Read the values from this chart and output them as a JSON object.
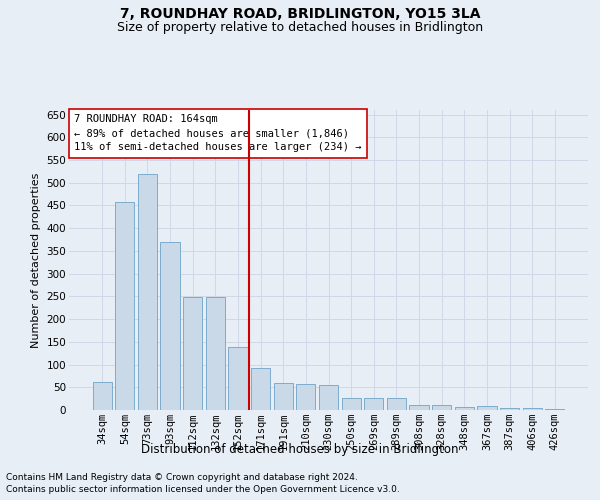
{
  "title": "7, ROUNDHAY ROAD, BRIDLINGTON, YO15 3LA",
  "subtitle": "Size of property relative to detached houses in Bridlington",
  "xlabel": "Distribution of detached houses by size in Bridlington",
  "ylabel": "Number of detached properties",
  "categories": [
    "34sqm",
    "54sqm",
    "73sqm",
    "93sqm",
    "112sqm",
    "132sqm",
    "152sqm",
    "171sqm",
    "191sqm",
    "210sqm",
    "230sqm",
    "250sqm",
    "269sqm",
    "289sqm",
    "308sqm",
    "328sqm",
    "348sqm",
    "367sqm",
    "387sqm",
    "406sqm",
    "426sqm"
  ],
  "values": [
    62,
    458,
    520,
    370,
    248,
    248,
    138,
    92,
    60,
    58,
    55,
    26,
    26,
    26,
    11,
    11,
    6,
    8,
    4,
    4,
    3
  ],
  "bar_color": "#c9d9e8",
  "bar_edge_color": "#6ea3c8",
  "grid_color": "#d0d8e8",
  "background_color": "#e8eef5",
  "vline_x_index": 7,
  "vline_color": "#cc0000",
  "annotation_text": "7 ROUNDHAY ROAD: 164sqm\n← 89% of detached houses are smaller (1,846)\n11% of semi-detached houses are larger (234) →",
  "annotation_box_color": "#ffffff",
  "annotation_box_edge": "#cc0000",
  "ylim": [
    0,
    660
  ],
  "yticks": [
    0,
    50,
    100,
    150,
    200,
    250,
    300,
    350,
    400,
    450,
    500,
    550,
    600,
    650
  ],
  "footnote1": "Contains HM Land Registry data © Crown copyright and database right 2024.",
  "footnote2": "Contains public sector information licensed under the Open Government Licence v3.0.",
  "title_fontsize": 10,
  "subtitle_fontsize": 9,
  "xlabel_fontsize": 8.5,
  "ylabel_fontsize": 8,
  "tick_fontsize": 7.5,
  "annot_fontsize": 7.5,
  "footnote_fontsize": 6.5
}
